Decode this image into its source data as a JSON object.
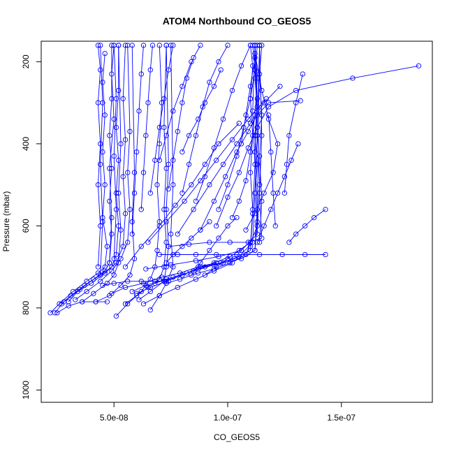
{
  "chart_data": {
    "type": "line",
    "title": "ATOM4 Northbound CO_GEOS5",
    "xlabel": "CO_GEOS5",
    "ylabel": "Pressure (mbar)",
    "xlim": [
      1.8e-08,
      1.9e-07
    ],
    "ylim": [
      1030,
      150
    ],
    "y_reversed": true,
    "x_ticks": [
      {
        "value": 5e-08,
        "label": "5.0e-08"
      },
      {
        "value": 1e-07,
        "label": "1.0e-07"
      },
      {
        "value": 1.5e-07,
        "label": "1.5e-07"
      }
    ],
    "y_ticks": [
      {
        "value": 200,
        "label": "200"
      },
      {
        "value": 400,
        "label": "400"
      },
      {
        "value": 600,
        "label": "600"
      },
      {
        "value": 800,
        "label": "800"
      },
      {
        "value": 1000,
        "label": "1000"
      }
    ],
    "marker": "open-circle",
    "color": "#0000ff",
    "series": [
      {
        "x": [
          2.2e-08,
          2.6e-08,
          3.2e-08,
          3.8e-08,
          4.3e-08,
          4.6e-08,
          4.7e-08,
          4.5e-08,
          4.6e-08,
          4.5e-08,
          4.6e-08,
          4.5e-08,
          4.6e-08
        ],
        "y": [
          812,
          790,
          760,
          735,
          715,
          700,
          650,
          580,
          500,
          420,
          330,
          250,
          180
        ]
      },
      {
        "x": [
          2.4e-08,
          2.8e-08,
          3.5e-08,
          4.1e-08,
          4.6e-08,
          4.8e-08,
          4.9e-08,
          4.8e-08,
          4.9e-08,
          4.8e-08,
          4.9e-08,
          4.9e-08
        ],
        "y": [
          812,
          785,
          755,
          730,
          710,
          690,
          620,
          540,
          460,
          380,
          290,
          160
        ]
      },
      {
        "x": [
          2.7e-08,
          3.1e-08,
          3.7e-08,
          4.4e-08,
          4.9e-08,
          5.1e-08,
          5.2e-08,
          5.1e-08,
          5.2e-08,
          5.1e-08,
          5.2e-08,
          5.2e-08
        ],
        "y": [
          790,
          770,
          745,
          720,
          700,
          670,
          600,
          520,
          440,
          360,
          270,
          160
        ]
      },
      {
        "x": [
          3e-08,
          3.4e-08,
          4e-08,
          4.6e-08,
          5.1e-08,
          5.4e-08,
          5.5e-08,
          5.4e-08,
          5.5e-08,
          5.4e-08,
          5.5e-08
        ],
        "y": [
          785,
          760,
          740,
          715,
          690,
          650,
          570,
          480,
          390,
          290,
          160
        ]
      },
      {
        "x": [
          3.3e-08,
          3.8e-08,
          4.4e-08,
          4.9e-08,
          5.3e-08,
          5.6e-08,
          5.7e-08,
          5.6e-08,
          5.7e-08,
          5.6e-08
        ],
        "y": [
          780,
          760,
          735,
          710,
          680,
          640,
          560,
          470,
          370,
          160
        ]
      },
      {
        "x": [
          3.6e-08,
          4.1e-08,
          4.7e-08,
          5e-08,
          5.2e-08,
          5.3e-08,
          5.2e-08,
          5.3e-08,
          5.2e-08
        ],
        "y": [
          785,
          765,
          740,
          720,
          690,
          610,
          520,
          400,
          160
        ]
      },
      {
        "x": [
          4.2e-08,
          4.8e-08,
          5.3e-08,
          5.7e-08,
          5.9e-08,
          5.8e-08,
          5.9e-08,
          5.8e-08
        ],
        "y": [
          785,
          770,
          745,
          720,
          680,
          590,
          470,
          160
        ]
      },
      {
        "x": [
          5.1e-08,
          5.6e-08,
          6.2e-08,
          6.6e-08,
          6.8e-08,
          6.9e-08,
          7e-08,
          6.9e-08,
          7e-08,
          7.1e-08,
          7e-08
        ],
        "y": [
          820,
          790,
          760,
          730,
          700,
          660,
          590,
          500,
          400,
          300,
          160
        ]
      },
      {
        "x": [
          5.5e-08,
          6e-08,
          6.5e-08,
          7e-08,
          7.2e-08,
          7.3e-08,
          7.2e-08,
          7.3e-08,
          7.2e-08,
          7.3e-08
        ],
        "y": [
          790,
          770,
          750,
          730,
          700,
          640,
          560,
          460,
          360,
          160
        ]
      },
      {
        "x": [
          6.1e-08,
          6.6e-08,
          7.2e-08,
          7.3e-08,
          7.4e-08,
          7.3e-08,
          7.4e-08,
          7.3e-08
        ],
        "y": [
          780,
          760,
          735,
          700,
          650,
          560,
          450,
          160
        ]
      },
      {
        "x": [
          6.6e-08,
          7e-08,
          7.3e-08,
          7.6e-08,
          7.5e-08,
          7.6e-08,
          7.5e-08
        ],
        "y": [
          805,
          770,
          740,
          700,
          620,
          500,
          160
        ]
      },
      {
        "x": [
          5.8e-08,
          6.4e-08,
          7.3e-08,
          8.2e-08,
          9e-08,
          9.8e-08,
          1.06e-07,
          1.12e-07,
          1.13e-07,
          1.12e-07,
          1.13e-07,
          1.12e-07
        ],
        "y": [
          760,
          745,
          730,
          715,
          700,
          690,
          680,
          660,
          560,
          420,
          290,
          160
        ]
      },
      {
        "x": [
          6.8e-08,
          7.6e-08,
          8.5e-08,
          9.4e-08,
          1.03e-07,
          1.1e-07,
          1.11e-07,
          1.12e-07,
          1.11e-07,
          1.12e-07
        ],
        "y": [
          740,
          725,
          710,
          695,
          680,
          660,
          570,
          450,
          320,
          160
        ]
      },
      {
        "x": [
          7.2e-08,
          8e-08,
          8.8e-08,
          9.7e-08,
          1.05e-07,
          1.11e-07,
          1.12e-07,
          1.13e-07,
          1.12e-07
        ],
        "y": [
          735,
          720,
          700,
          690,
          675,
          640,
          520,
          380,
          160
        ]
      },
      {
        "x": [
          7e-08,
          7.8e-08,
          8.6e-08,
          9.5e-08,
          1.04e-07,
          1.14e-07,
          1.24e-07,
          1.34e-07,
          1.43e-07
        ],
        "y": [
          670,
          670,
          670,
          670,
          670,
          670,
          670,
          670,
          670
        ]
      },
      {
        "x": [
          7.4e-08,
          8.3e-08,
          9.2e-08,
          1.01e-07,
          1.09e-07,
          1.15e-07,
          1.14e-07,
          1.15e-07,
          1.14e-07
        ],
        "y": [
          650,
          645,
          640,
          640,
          640,
          630,
          520,
          380,
          160
        ]
      },
      {
        "x": [
          6.4e-08,
          7.5e-08,
          8.6e-08,
          9.6e-08,
          1.06e-07,
          1.13e-07,
          1.14e-07,
          1.13e-07,
          1.14e-07
        ],
        "y": [
          705,
          695,
          685,
          675,
          660,
          620,
          500,
          360,
          160
        ]
      },
      {
        "x": [
          7.3e-08,
          7.9e-08,
          8.7e-08,
          9.4e-08,
          1.01e-07,
          1.08e-07,
          1.13e-07,
          1.14e-07
        ],
        "y": [
          740,
          730,
          715,
          705,
          690,
          670,
          600,
          160
        ]
      },
      {
        "x": [
          5.5e-08,
          6.2e-08,
          7e-08,
          7.7e-08,
          8.4e-08,
          9e-08,
          9.6e-08,
          1.05e-07
        ],
        "y": [
          700,
          650,
          600,
          550,
          500,
          450,
          400,
          350
        ]
      },
      {
        "x": [
          6.5e-08,
          7.3e-08,
          8.1e-08,
          8.8e-08,
          9.5e-08,
          1.02e-07,
          1.09e-07,
          1.17e-07
        ],
        "y": [
          640,
          590,
          540,
          490,
          440,
          390,
          340,
          290
        ]
      },
      {
        "x": [
          7.8e-08,
          8.5e-08,
          9.2e-08,
          9.8e-08,
          1.04e-07,
          1.1e-07,
          1.16e-07,
          1.23e-07
        ],
        "y": [
          620,
          560,
          500,
          450,
          400,
          350,
          300,
          260
        ]
      },
      {
        "x": [
          8.8e-08,
          9.4e-08,
          9.9e-08,
          1.04e-07,
          1.09e-07,
          1.13e-07,
          1.18e-07,
          1.32e-07
        ],
        "y": [
          610,
          540,
          480,
          420,
          370,
          330,
          300,
          295
        ]
      },
      {
        "x": [
          9.5e-08,
          1e-07,
          1.05e-07,
          1.09e-07,
          1.13e-07,
          1.18e-07,
          1.3e-07,
          1.55e-07,
          1.84e-07
        ],
        "y": [
          600,
          530,
          470,
          410,
          360,
          310,
          270,
          240,
          210
        ]
      },
      {
        "x": [
          1.13e-07,
          1.16e-07,
          1.19e-07,
          1.22e-07,
          1.25e-07,
          1.28e-07,
          1.31e-07
        ],
        "y": [
          640,
          600,
          560,
          520,
          480,
          440,
          400
        ]
      },
      {
        "x": [
          1.08e-07,
          1.12e-07,
          1.16e-07,
          1.2e-07,
          1.22e-07,
          1.18e-07,
          1.15e-07,
          1.12e-07
        ],
        "y": [
          610,
          570,
          520,
          470,
          400,
          340,
          270,
          180
        ]
      },
      {
        "x": [
          1.02e-07,
          1.05e-07,
          1.08e-07,
          1.1e-07,
          1.12e-07,
          1.13e-07,
          1.12e-07
        ],
        "y": [
          580,
          540,
          490,
          420,
          330,
          240,
          160
        ]
      },
      {
        "x": [
          9.6e-08,
          1e-07,
          1.04e-07,
          1.07e-07,
          1.1e-07,
          1.12e-07,
          1.11e-07
        ],
        "y": [
          560,
          500,
          430,
          360,
          290,
          220,
          160
        ]
      },
      {
        "x": [
          8.6e-08,
          9e-08,
          9.4e-08,
          9.8e-08,
          1.02e-07,
          1.06e-07,
          1.1e-07
        ],
        "y": [
          540,
          480,
          410,
          340,
          270,
          210,
          160
        ]
      },
      {
        "x": [
          8e-08,
          8.3e-08,
          8.6e-08,
          8.9e-08,
          9.2e-08,
          9.6e-08,
          1e-07
        ],
        "y": [
          520,
          450,
          380,
          310,
          250,
          200,
          160
        ]
      },
      {
        "x": [
          7.4e-08,
          7.6e-08,
          7.8e-08,
          8e-08,
          8.2e-08,
          8.5e-08,
          8.8e-08
        ],
        "y": [
          510,
          440,
          370,
          300,
          240,
          190,
          160
        ]
      },
      {
        "x": [
          6.6e-08,
          6.8e-08,
          7e-08,
          7.2e-08,
          7.4e-08,
          7.6e-08
        ],
        "y": [
          520,
          440,
          360,
          290,
          220,
          160
        ]
      },
      {
        "x": [
          6.2e-08,
          6.3e-08,
          6.4e-08,
          6.5e-08,
          6.6e-08,
          6.7e-08
        ],
        "y": [
          560,
          470,
          380,
          300,
          220,
          160
        ]
      },
      {
        "x": [
          5.8e-08,
          5.9e-08,
          6e-08,
          6.1e-08,
          6.2e-08,
          6.3e-08
        ],
        "y": [
          620,
          520,
          420,
          320,
          230,
          160
        ]
      },
      {
        "x": [
          8.4e-08,
          8.8e-08,
          9.2e-08,
          9.6e-08,
          1e-07,
          1.04e-07
        ],
        "y": [
          720,
          690,
          660,
          630,
          600,
          580
        ]
      },
      {
        "x": [
          6e-08,
          6.6e-08,
          7.3e-08,
          8e-08,
          8.7e-08,
          9.4e-08,
          1.01e-07
        ],
        "y": [
          765,
          750,
          735,
          720,
          705,
          690,
          675
        ]
      },
      {
        "x": [
          6.3e-08,
          7e-08,
          7.8e-08,
          8.6e-08,
          9.4e-08,
          1.02e-07
        ],
        "y": [
          790,
          770,
          750,
          730,
          710,
          690
        ]
      },
      {
        "x": [
          4.9e-08,
          5.5e-08,
          6.3e-08,
          7.1e-08,
          7.9e-08,
          8.7e-08,
          9.5e-08
        ],
        "y": [
          765,
          750,
          740,
          725,
          715,
          700,
          690
        ]
      },
      {
        "x": [
          1.12e-07,
          1.13e-07,
          1.12e-07,
          1.13e-07,
          1.12e-07,
          1.13e-07,
          1.12e-07,
          1.13e-07
        ],
        "y": [
          660,
          590,
          520,
          450,
          380,
          310,
          240,
          160
        ]
      },
      {
        "x": [
          1.1e-07,
          1.11e-07,
          1.1e-07,
          1.11e-07,
          1.1e-07,
          1.11e-07,
          1.1e-07
        ],
        "y": [
          650,
          560,
          470,
          380,
          290,
          210,
          160
        ]
      },
      {
        "x": [
          1.14e-07,
          1.15e-07,
          1.14e-07,
          1.15e-07,
          1.14e-07,
          1.15e-07
        ],
        "y": [
          640,
          540,
          430,
          330,
          230,
          160
        ]
      },
      {
        "x": [
          4.3e-08,
          4.4e-08,
          4.3e-08,
          4.4e-08,
          4.3e-08,
          4.4e-08,
          4.3e-08
        ],
        "y": [
          700,
          600,
          500,
          400,
          300,
          220,
          160
        ]
      },
      {
        "x": [
          4.8e-08,
          4.9e-08,
          4.8e-08,
          5e-08,
          4.9e-08,
          5e-08
        ],
        "y": [
          690,
          580,
          460,
          340,
          230,
          160
        ]
      },
      {
        "x": [
          5e-08,
          5.1e-08,
          5e-08,
          5.1e-08,
          5e-08
        ],
        "y": [
          680,
          560,
          430,
          290,
          160
        ]
      },
      {
        "x": [
          4.4e-08,
          4.5e-08,
          4.4e-08,
          4.5e-08,
          4.4e-08
        ],
        "y": [
          720,
          590,
          450,
          300,
          160
        ]
      },
      {
        "x": [
          8e-08,
          8.3e-08,
          8.7e-08,
          9e-08,
          9.4e-08,
          9.7e-08
        ],
        "y": [
          420,
          380,
          340,
          300,
          260,
          220
        ]
      },
      {
        "x": [
          7e-08,
          7.3e-08,
          7.6e-08,
          8e-08,
          8.4e-08
        ],
        "y": [
          440,
          380,
          320,
          260,
          200
        ]
      },
      {
        "x": [
          1.06e-07,
          1.08e-07,
          1.1e-07,
          1.12e-07
        ],
        "y": [
          400,
          330,
          260,
          190
        ]
      },
      {
        "x": [
          9e-08,
          9.5e-08,
          1e-07,
          1.05e-07,
          1.1e-07
        ],
        "y": [
          720,
          700,
          680,
          660,
          640
        ]
      },
      {
        "x": [
          2.5e-08,
          3e-08,
          3.6e-08,
          4.2e-08,
          4.7e-08
        ],
        "y": [
          812,
          795,
          785,
          785,
          785
        ]
      },
      {
        "x": [
          4.5e-08,
          5e-08,
          5.6e-08,
          6.2e-08,
          6.8e-08,
          7.4e-08
        ],
        "y": [
          745,
          740,
          735,
          735,
          735,
          735
        ]
      },
      {
        "x": [
          7.3e-08,
          7.6e-08,
          8e-08,
          8.4e-08,
          8.8e-08,
          9.2e-08
        ],
        "y": [
          690,
          670,
          650,
          630,
          610,
          590
        ]
      },
      {
        "x": [
          1.25e-07,
          1.26e-07,
          1.27e-07,
          1.3e-07,
          1.33e-07
        ],
        "y": [
          520,
          450,
          380,
          300,
          230
        ]
      },
      {
        "x": [
          1.21e-07,
          1.2e-07,
          1.19e-07,
          1.18e-07
        ],
        "y": [
          600,
          520,
          420,
          330
        ]
      },
      {
        "x": [
          1.27e-07,
          1.3e-07,
          1.34e-07,
          1.38e-07,
          1.43e-07
        ],
        "y": [
          640,
          620,
          600,
          580,
          560
        ]
      }
    ]
  }
}
